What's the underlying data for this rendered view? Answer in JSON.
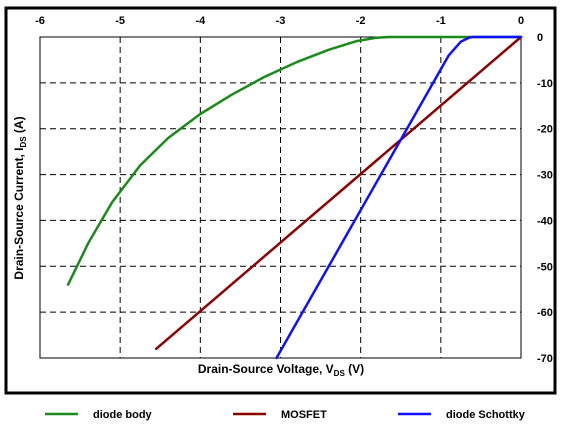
{
  "chart_data": {
    "type": "line",
    "xlabel": "Drain-Source Voltage, V",
    "xlabel_sub": "DS",
    "xlabel_unit": " (V)",
    "ylabel": "Drain-Source Current, I",
    "ylabel_sub": "DS",
    "ylabel_unit": " (A)",
    "xlim": [
      -6,
      0
    ],
    "ylim": [
      -70,
      0
    ],
    "xticks": [
      -6,
      -5,
      -4,
      -3,
      -2,
      -1,
      0
    ],
    "yticks": [
      0,
      -10,
      -20,
      -30,
      -40,
      -50,
      -60,
      -70
    ],
    "xtick_labels": [
      "-6",
      "-5",
      "-4",
      "-3",
      "-2",
      "-1",
      "0"
    ],
    "ytick_labels": [
      "0",
      "-10",
      "-20",
      "-30",
      "-40",
      "-50",
      "-60",
      "-70"
    ],
    "grid": true,
    "legend_position": "bottom",
    "series": [
      {
        "name": "diode body",
        "color": "#1a8a1a",
        "x": [
          -5.65,
          -5.4,
          -5.1,
          -4.75,
          -4.4,
          -4.0,
          -3.6,
          -3.2,
          -2.8,
          -2.4,
          -2.05,
          -1.8,
          -1.65,
          0
        ],
        "y": [
          -54,
          -45,
          -36,
          -28,
          -22,
          -16.8,
          -12.5,
          -8.7,
          -5.5,
          -2.8,
          -0.9,
          -0.15,
          0,
          0
        ]
      },
      {
        "name": "MOSFET",
        "color": "#8b0000",
        "x": [
          -4.55,
          0
        ],
        "y": [
          -68,
          0
        ]
      },
      {
        "name": "diode Schottky",
        "color": "#1010ff",
        "x": [
          -3.05,
          -0.9,
          -0.75,
          -0.65,
          -0.6,
          0
        ],
        "y": [
          -70,
          -4,
          -1,
          -0.15,
          0,
          0
        ]
      }
    ]
  }
}
